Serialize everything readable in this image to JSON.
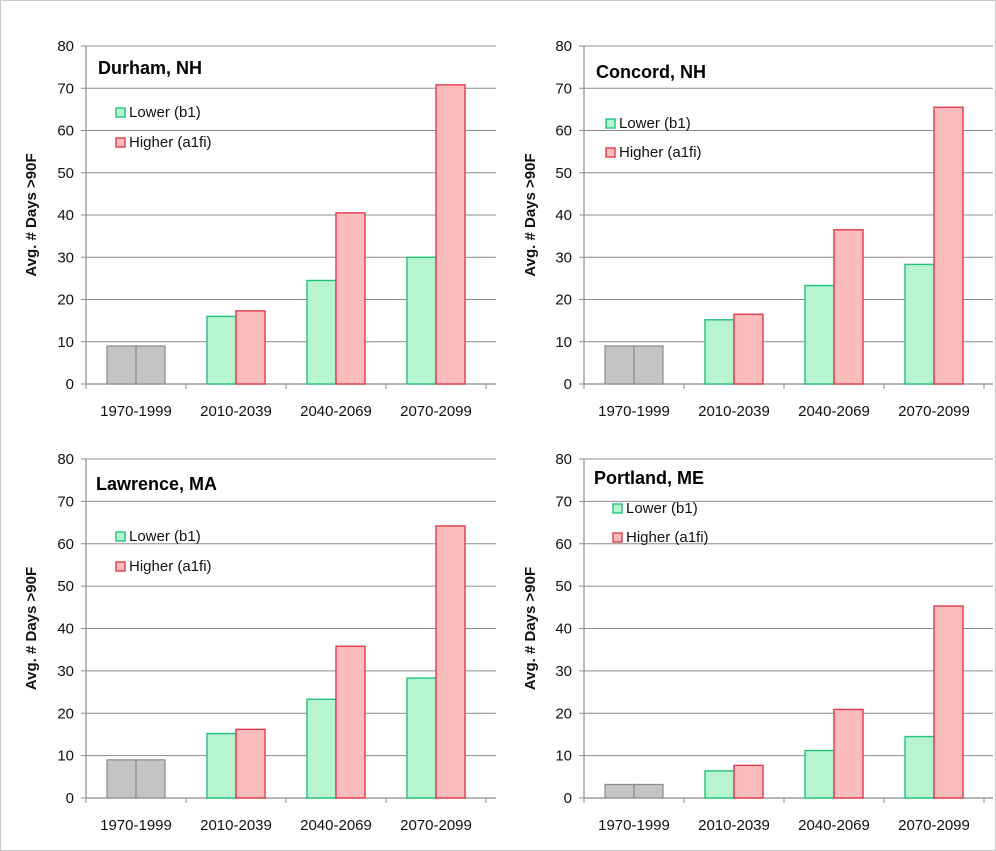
{
  "chart_data": [
    {
      "type": "bar",
      "title": "Durham, NH",
      "ylabel": "Avg. # Days >90F",
      "xlabel": "",
      "ylim": [
        0,
        80
      ],
      "yticks": [
        0,
        10,
        20,
        30,
        40,
        50,
        60,
        70,
        80
      ],
      "categories": [
        "1970-1999",
        "2010-2039",
        "2040-2069",
        "2070-2099"
      ],
      "baseline": {
        "category": "1970-1999",
        "value": 9
      },
      "series": [
        {
          "name": "Lower (b1)",
          "values": [
            null,
            16,
            24.5,
            30
          ]
        },
        {
          "name": "Higher (a1fi)",
          "values": [
            null,
            17.3,
            40.5,
            70.8
          ]
        }
      ],
      "legend": "top-left"
    },
    {
      "type": "bar",
      "title": "Concord, NH",
      "ylabel": "Avg. # Days >90F",
      "xlabel": "",
      "ylim": [
        0,
        80
      ],
      "yticks": [
        0,
        10,
        20,
        30,
        40,
        50,
        60,
        70,
        80
      ],
      "categories": [
        "1970-1999",
        "2010-2039",
        "2040-2069",
        "2070-2099"
      ],
      "baseline": {
        "category": "1970-1999",
        "value": 9
      },
      "series": [
        {
          "name": "Lower (b1)",
          "values": [
            null,
            15.2,
            23.3,
            28.3
          ]
        },
        {
          "name": "Higher (a1fi)",
          "values": [
            null,
            16.5,
            36.5,
            65.5
          ]
        }
      ],
      "legend": "top-left"
    },
    {
      "type": "bar",
      "title": "Lawrence, MA",
      "ylabel": "Avg. # Days >90F",
      "xlabel": "",
      "ylim": [
        0,
        80
      ],
      "yticks": [
        0,
        10,
        20,
        30,
        40,
        50,
        60,
        70,
        80
      ],
      "categories": [
        "1970-1999",
        "2010-2039",
        "2040-2069",
        "2070-2099"
      ],
      "baseline": {
        "category": "1970-1999",
        "value": 9
      },
      "series": [
        {
          "name": "Lower (b1)",
          "values": [
            null,
            15.2,
            23.3,
            28.3
          ]
        },
        {
          "name": "Higher (a1fi)",
          "values": [
            null,
            16.2,
            35.8,
            64.2
          ]
        }
      ],
      "legend": "top-left"
    },
    {
      "type": "bar",
      "title": "Portland, ME",
      "ylabel": "Avg. # Days >90F",
      "xlabel": "",
      "ylim": [
        0,
        80
      ],
      "yticks": [
        0,
        10,
        20,
        30,
        40,
        50,
        60,
        70,
        80
      ],
      "categories": [
        "1970-1999",
        "2010-2039",
        "2040-2069",
        "2070-2099"
      ],
      "baseline": {
        "category": "1970-1999",
        "value": 3.2
      },
      "series": [
        {
          "name": "Lower (b1)",
          "values": [
            null,
            6.4,
            11.2,
            14.5
          ]
        },
        {
          "name": "Higher (a1fi)",
          "values": [
            null,
            7.7,
            20.9,
            45.3
          ]
        }
      ],
      "legend": "top-left"
    }
  ],
  "colors": {
    "baseline_fill": "#c4c4c4",
    "baseline_stroke": "#8a8a8a",
    "lower_fill": "#b6f5cf",
    "lower_stroke": "#22c27a",
    "higher_fill": "#fbbcbc",
    "higher_stroke": "#e03a4a",
    "grid": "#8c8c8c",
    "axis": "#8c8c8c"
  }
}
